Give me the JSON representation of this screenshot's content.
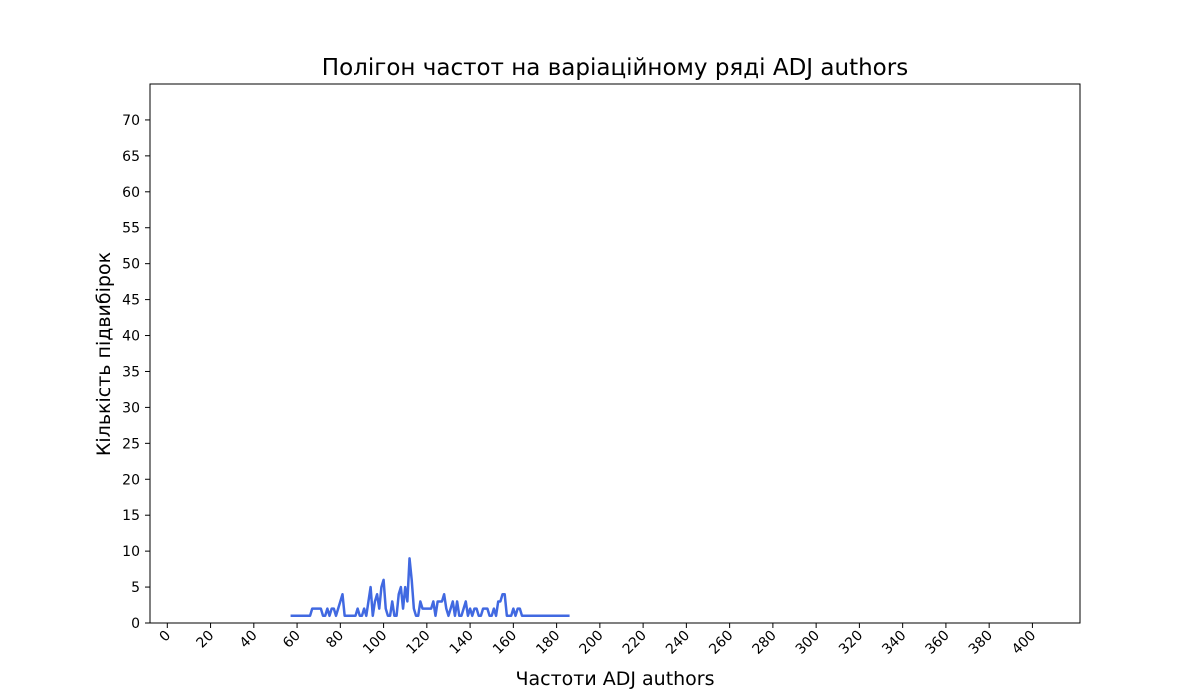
{
  "chart_data": {
    "type": "line",
    "title": "Полігон частот на варіаційному ряді ADJ authors",
    "xlabel": "Частоти ADJ authors",
    "ylabel": "Кількість підвибірок",
    "xlim": [
      -8,
      422
    ],
    "ylim": [
      0,
      75
    ],
    "xticks": [
      0,
      20,
      40,
      60,
      80,
      100,
      120,
      140,
      160,
      180,
      200,
      220,
      240,
      260,
      280,
      300,
      320,
      340,
      360,
      380,
      400
    ],
    "yticks": [
      0,
      5,
      10,
      15,
      20,
      25,
      30,
      35,
      40,
      45,
      50,
      55,
      60,
      65,
      70
    ],
    "xtick_rotation": 45,
    "grid": false,
    "series": [
      {
        "color": "#4169e1",
        "x": [
          57,
          58,
          59,
          60,
          61,
          62,
          63,
          64,
          65,
          66,
          67,
          68,
          69,
          70,
          71,
          72,
          73,
          74,
          75,
          76,
          77,
          78,
          79,
          80,
          81,
          82,
          83,
          84,
          85,
          86,
          87,
          88,
          89,
          90,
          91,
          92,
          93,
          94,
          95,
          96,
          97,
          98,
          99,
          100,
          101,
          102,
          103,
          104,
          105,
          106,
          107,
          108,
          109,
          110,
          111,
          112,
          113,
          114,
          115,
          116,
          117,
          118,
          119,
          120,
          121,
          122,
          123,
          124,
          125,
          126,
          127,
          128,
          129,
          130,
          131,
          132,
          133,
          134,
          135,
          136,
          137,
          138,
          139,
          140,
          141,
          142,
          143,
          144,
          145,
          146,
          147,
          148,
          149,
          150,
          151,
          152,
          153,
          154,
          155,
          156,
          157,
          158,
          159,
          160,
          161,
          162,
          163,
          164,
          165,
          166,
          167,
          168,
          169,
          170,
          171,
          172,
          173,
          174,
          175,
          176,
          177,
          178,
          179,
          180,
          181,
          182,
          183,
          184,
          185,
          186
        ],
        "y": [
          1,
          1,
          1,
          1,
          1,
          1,
          1,
          1,
          1,
          1,
          2,
          2,
          2,
          2,
          2,
          1,
          1,
          2,
          1,
          2,
          2,
          1,
          2,
          3,
          4,
          1,
          1,
          1,
          1,
          1,
          1,
          2,
          1,
          1,
          2,
          1,
          3,
          5,
          1,
          3,
          4,
          2,
          5,
          6,
          2,
          1,
          1,
          3,
          1,
          1,
          4,
          5,
          2,
          5,
          3,
          9,
          6,
          2,
          1,
          1,
          3,
          2,
          2,
          2,
          2,
          2,
          3,
          1,
          3,
          3,
          3,
          4,
          2,
          1,
          2,
          3,
          1,
          3,
          1,
          1,
          2,
          3,
          1,
          2,
          1,
          2,
          2,
          1,
          1,
          2,
          2,
          2,
          1,
          1,
          2,
          1,
          3,
          3,
          4,
          4,
          1,
          1,
          1,
          2,
          1,
          2,
          2,
          1,
          1,
          1,
          1,
          1,
          1,
          1,
          1,
          1,
          1,
          1,
          1,
          1,
          1,
          1,
          1,
          1,
          1,
          1,
          1,
          1,
          1,
          1
        ]
      }
    ]
  }
}
